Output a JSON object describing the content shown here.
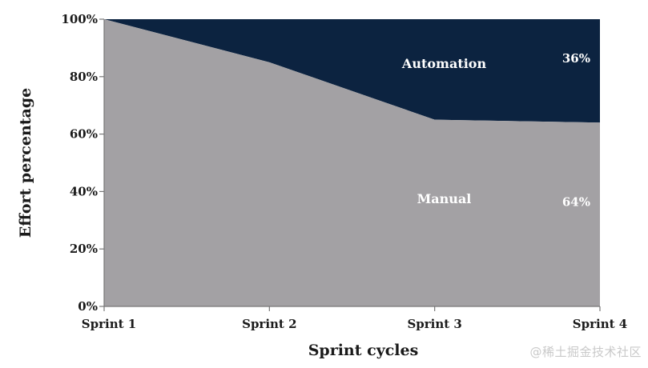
{
  "chart_data": {
    "type": "area",
    "stacked": true,
    "normalized": true,
    "title": "",
    "xlabel": "Sprint cycles",
    "ylabel": "Effort percentage",
    "categories": [
      "Sprint 1",
      "Sprint 2",
      "Sprint 3",
      "Sprint 4"
    ],
    "ylim": [
      0,
      100
    ],
    "yticks": [
      "0%",
      "20%",
      "40%",
      "60%",
      "80%",
      "100%"
    ],
    "series": [
      {
        "name": "Manual",
        "values": [
          100,
          85,
          65,
          64
        ],
        "color": "#a3a1a4",
        "end_label": "64%"
      },
      {
        "name": "Automation",
        "values": [
          0,
          15,
          35,
          36
        ],
        "color": "#0c2340",
        "end_label": "36%"
      }
    ],
    "grid": false,
    "legend": "in-plot"
  },
  "watermark": "@稀土掘金技术社区"
}
